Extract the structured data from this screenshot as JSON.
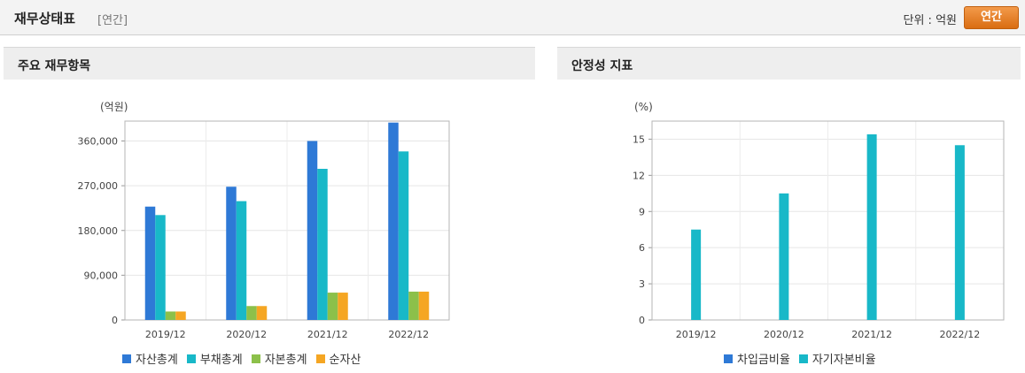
{
  "header": {
    "title": "재무상태표",
    "subtitle": "[연간]",
    "unit_text": "단위 : 억원",
    "period_button": "연간"
  },
  "panels": {
    "left_title": "주요 재무항목",
    "right_title": "안정성 지표"
  },
  "colors": {
    "blue": "#2e79d6",
    "cyan": "#18b8c8",
    "green": "#8cc04a",
    "orange": "#f5a623"
  },
  "chart_data": [
    {
      "type": "bar",
      "unit_label": "(억원)",
      "categories": [
        "2019/12",
        "2020/12",
        "2021/12",
        "2022/12"
      ],
      "ylim": [
        0,
        400000
      ],
      "yticks": [
        0,
        90000,
        180000,
        270000,
        360000
      ],
      "ytick_labels": [
        "0",
        "90,000",
        "180,000",
        "270,000",
        "360,000"
      ],
      "grid": true,
      "legend_position": "bottom",
      "series": [
        {
          "name": "자산총계",
          "color": "#2e79d6",
          "values": [
            228000,
            268000,
            360000,
            397000
          ]
        },
        {
          "name": "부채총계",
          "color": "#18b8c8",
          "values": [
            211000,
            239000,
            304000,
            339000
          ]
        },
        {
          "name": "자본총계",
          "color": "#8cc04a",
          "values": [
            17000,
            28000,
            55000,
            57000
          ]
        },
        {
          "name": "순자산",
          "color": "#f5a623",
          "values": [
            17000,
            28000,
            55000,
            57000
          ]
        }
      ]
    },
    {
      "type": "bar",
      "unit_label": "(%)",
      "categories": [
        "2019/12",
        "2020/12",
        "2021/12",
        "2022/12"
      ],
      "ylim": [
        0,
        16.5
      ],
      "yticks": [
        0,
        3,
        6,
        9,
        12,
        15
      ],
      "ytick_labels": [
        "0",
        "3",
        "6",
        "9",
        "12",
        "15"
      ],
      "grid": true,
      "legend_position": "bottom",
      "series": [
        {
          "name": "차입금비율",
          "color": "#2e79d6",
          "values": [
            0,
            0,
            0,
            0
          ]
        },
        {
          "name": "자기자본비율",
          "color": "#18b8c8",
          "values": [
            7.5,
            10.5,
            15.4,
            14.5
          ]
        }
      ]
    }
  ]
}
